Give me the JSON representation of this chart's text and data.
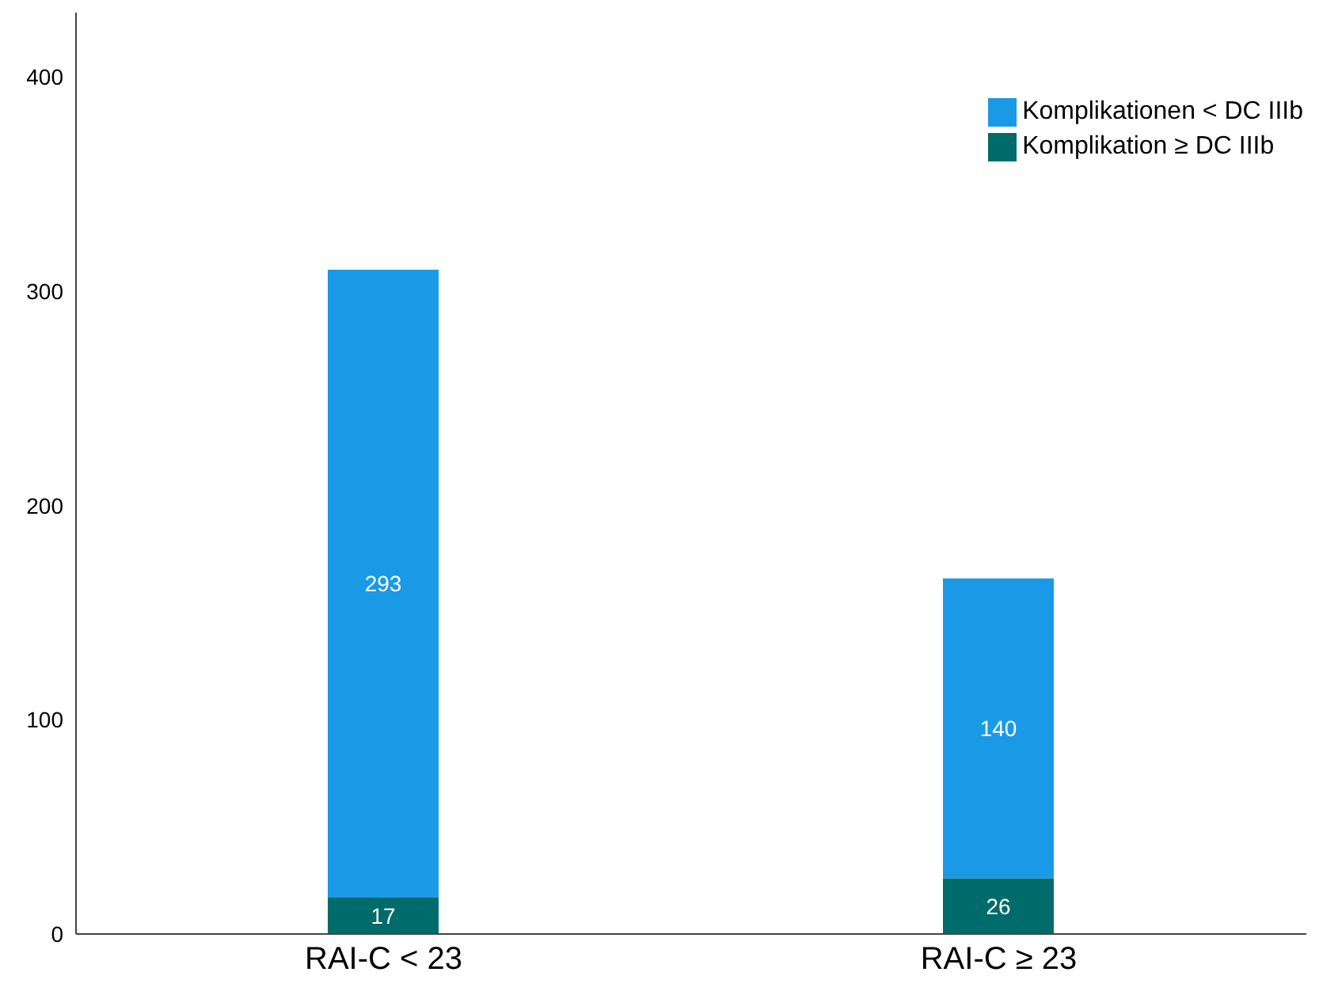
{
  "chart_data": {
    "type": "bar",
    "stacked": true,
    "categories": [
      "RAI-C < 23",
      "RAI-C ≥ 23"
    ],
    "series": [
      {
        "name": "Komplikation ≥ DC IIIb",
        "color": "#006b6b",
        "values": [
          17,
          26
        ]
      },
      {
        "name": "Komplikationen < DC IIIb",
        "color": "#1a9ae6",
        "values": [
          293,
          140
        ]
      }
    ],
    "ylim": [
      0,
      430
    ],
    "yticks": [
      0,
      100,
      200,
      300,
      400
    ],
    "grid": false,
    "legend": "top right",
    "data_labels": true
  }
}
